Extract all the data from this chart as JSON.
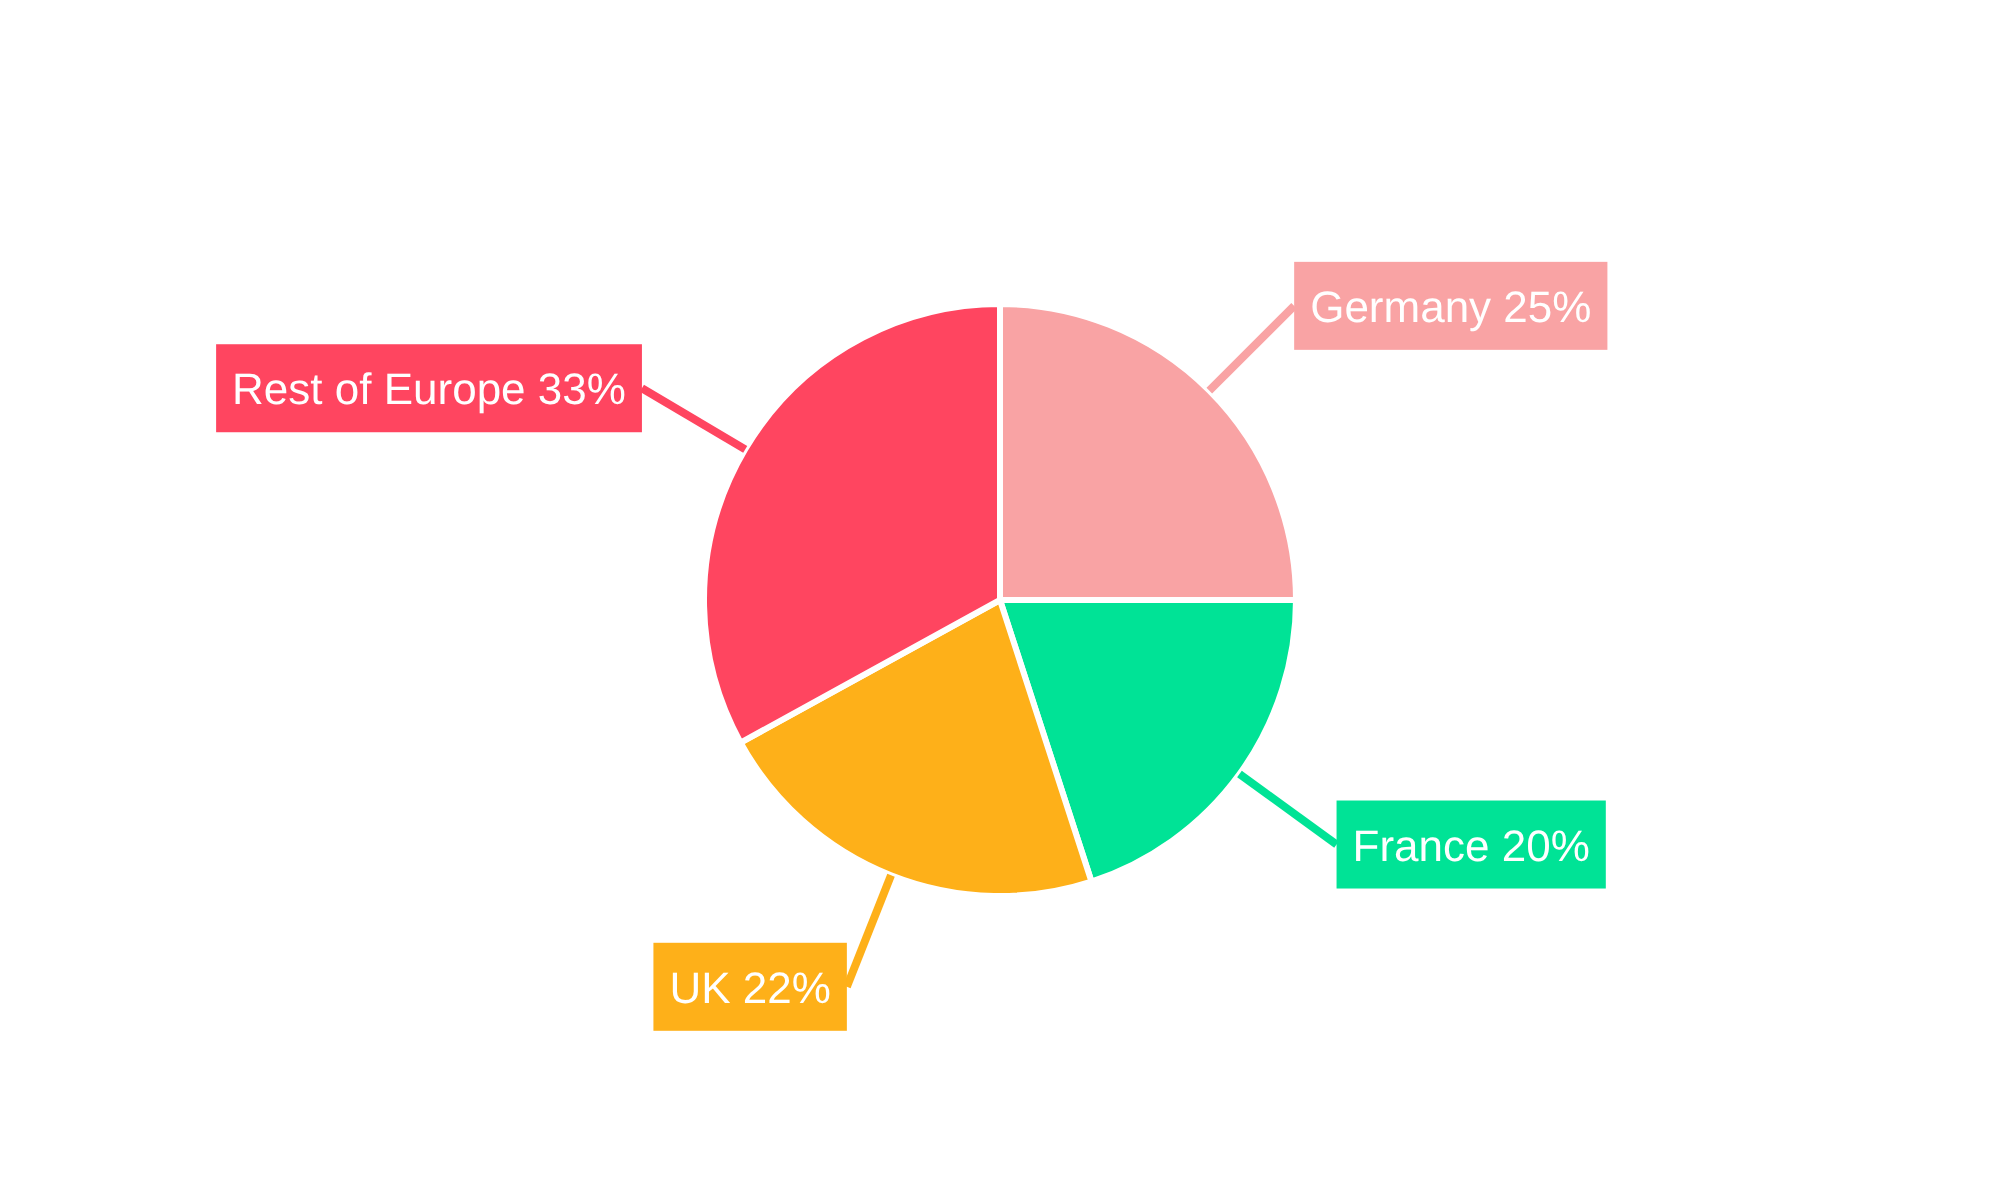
{
  "chart_data": {
    "type": "pie",
    "categories": [
      "Germany",
      "France",
      "UK",
      "Rest of Europe"
    ],
    "values": [
      25,
      20,
      22,
      33
    ],
    "value_labels": [
      "25%",
      "20%",
      "22%",
      "33%"
    ],
    "colors": [
      "#f9a3a4",
      "#00e396",
      "#feb019",
      "#ff4560"
    ]
  }
}
